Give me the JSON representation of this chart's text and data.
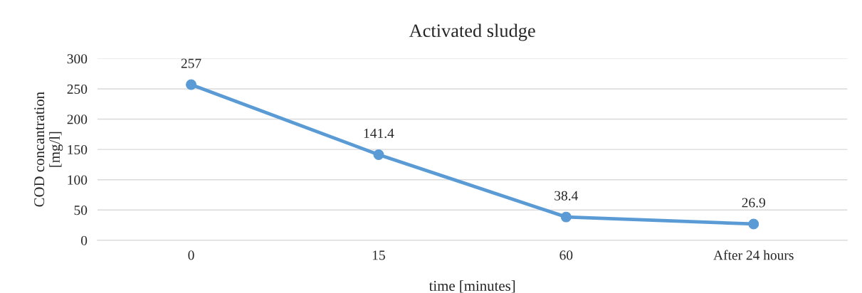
{
  "chart_data": {
    "type": "line",
    "title": "Activated sludge",
    "xlabel": "time [minutes]",
    "ylabel": "COD concantration\n[mg/l]",
    "categories": [
      "0",
      "15",
      "60",
      "After 24 hours"
    ],
    "series": [
      {
        "color": "#5b9bd5",
        "values": [
          257,
          141.4,
          38.4,
          26.9
        ]
      }
    ],
    "ylim": [
      0,
      300
    ],
    "yticks": [
      0,
      50,
      100,
      150,
      200,
      250,
      300
    ],
    "grid": "y",
    "data_labels": true,
    "marker": "circle",
    "line_style": "solid"
  }
}
